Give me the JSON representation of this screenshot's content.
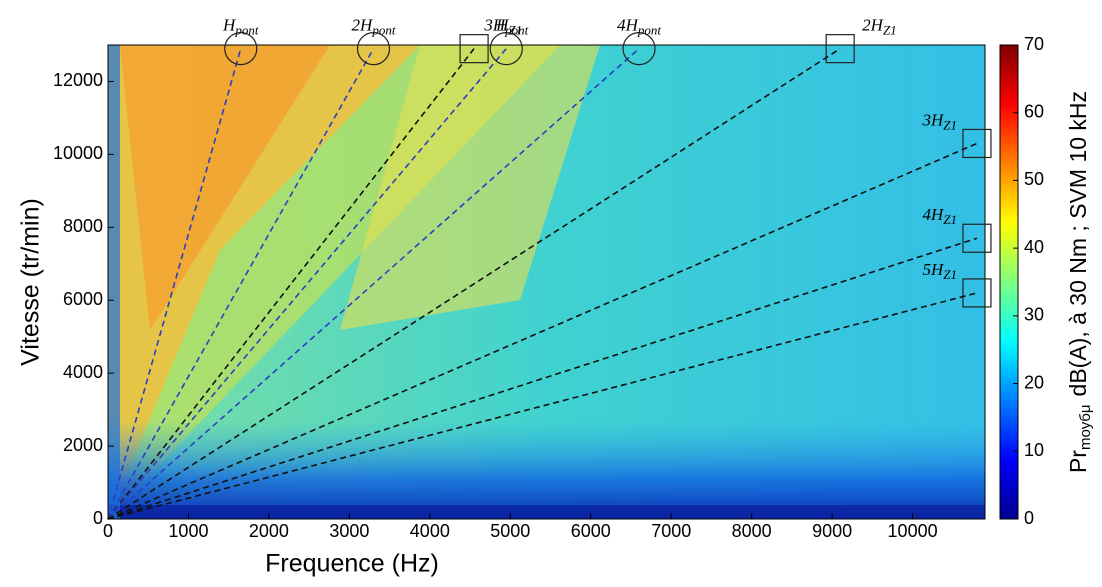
{
  "chart_data": {
    "type": "campbell",
    "xlabel": "Frequence (Hz)",
    "ylabel": "Vitesse (tr/min)",
    "xlim": [
      0,
      10900
    ],
    "ylim": [
      0,
      13000
    ],
    "xticks": [
      0,
      1000,
      2000,
      3000,
      4000,
      5000,
      6000,
      7000,
      8000,
      9000,
      10000
    ],
    "yticks": [
      0,
      2000,
      4000,
      6000,
      8000,
      10000,
      12000
    ],
    "colorbar": {
      "lim": [
        0,
        70
      ],
      "ticks": [
        0,
        10,
        20,
        30,
        40,
        50,
        60,
        70
      ],
      "label_main": "Pr",
      "label_sub": "moyбμ",
      "label_rest": "dB(A), à 30 Nm ; SVM 10 kHz"
    },
    "series": [
      {
        "name": "H",
        "sub": "pont",
        "color": "#2b3fc4",
        "marker": "circle",
        "x": [
          0,
          1650
        ],
        "y": [
          0,
          12900
        ]
      },
      {
        "name": "2H",
        "sub": "pont",
        "color": "#2b3fc4",
        "marker": "circle",
        "x": [
          0,
          3300
        ],
        "y": [
          0,
          12900
        ]
      },
      {
        "name": "H",
        "sub": "Z1",
        "color": "#111111",
        "marker": "square",
        "x": [
          0,
          4550
        ],
        "y": [
          0,
          12900
        ]
      },
      {
        "name": "3H",
        "sub": "pont",
        "color": "#2b3fc4",
        "marker": "circle",
        "x": [
          0,
          4950
        ],
        "y": [
          0,
          12900
        ]
      },
      {
        "name": "4H",
        "sub": "pont",
        "color": "#2b3fc4",
        "marker": "circle",
        "x": [
          0,
          6600
        ],
        "y": [
          0,
          12900
        ]
      },
      {
        "name": "2H",
        "sub": "Z1",
        "color": "#111111",
        "marker": "square",
        "x": [
          0,
          9100
        ],
        "y": [
          0,
          12900
        ]
      },
      {
        "name": "3H",
        "sub": "Z1",
        "color": "#111111",
        "marker": "square",
        "x": [
          0,
          10800
        ],
        "y": [
          0,
          10300
        ]
      },
      {
        "name": "4H",
        "sub": "Z1",
        "color": "#111111",
        "marker": "square",
        "x": [
          0,
          10800
        ],
        "y": [
          0,
          7700
        ]
      },
      {
        "name": "5H",
        "sub": "Z1",
        "color": "#111111",
        "marker": "square",
        "x": [
          0,
          10800
        ],
        "y": [
          0,
          6200
        ]
      }
    ]
  }
}
